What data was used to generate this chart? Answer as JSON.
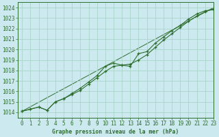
{
  "title": "Graphe pression niveau de la mer (hPa)",
  "bg_color": "#cde9f0",
  "grid_color": "#a8d5c8",
  "line_color": "#2d6e2d",
  "xlim": [
    -0.5,
    23
  ],
  "ylim": [
    1013.5,
    1024.5
  ],
  "yticks": [
    1014,
    1015,
    1016,
    1017,
    1018,
    1019,
    1020,
    1021,
    1022,
    1023,
    1024
  ],
  "xticks": [
    0,
    1,
    2,
    3,
    4,
    5,
    6,
    7,
    8,
    9,
    10,
    11,
    12,
    13,
    14,
    15,
    16,
    17,
    18,
    19,
    20,
    21,
    22,
    23
  ],
  "series1_x": [
    0,
    1,
    2,
    3,
    4,
    5,
    6,
    7,
    8,
    9,
    10,
    11,
    12,
    13,
    14,
    15,
    16,
    17,
    18,
    19,
    20,
    21,
    22,
    23
  ],
  "series1_y": [
    1014.1,
    1014.3,
    1014.5,
    1014.2,
    1015.0,
    1015.3,
    1015.8,
    1016.3,
    1016.9,
    1017.5,
    1018.4,
    1018.7,
    1018.5,
    1018.4,
    1019.6,
    1019.8,
    1020.6,
    1021.2,
    1021.8,
    1022.3,
    1022.9,
    1023.4,
    1023.7,
    1023.8
  ],
  "series2_x": [
    0,
    1,
    2,
    3,
    4,
    5,
    6,
    7,
    8,
    9,
    10,
    11,
    12,
    13,
    14,
    15,
    16,
    17,
    18,
    19,
    20,
    21,
    22,
    23
  ],
  "series2_y": [
    1014.1,
    1014.3,
    1014.5,
    1014.2,
    1015.0,
    1015.3,
    1015.7,
    1016.1,
    1016.7,
    1017.3,
    1017.9,
    1018.4,
    1018.5,
    1018.6,
    1019.0,
    1019.5,
    1020.2,
    1020.9,
    1021.5,
    1022.1,
    1022.7,
    1023.2,
    1023.6,
    1023.9
  ],
  "series3_x": [
    0,
    23
  ],
  "series3_y": [
    1014.1,
    1024.0
  ]
}
